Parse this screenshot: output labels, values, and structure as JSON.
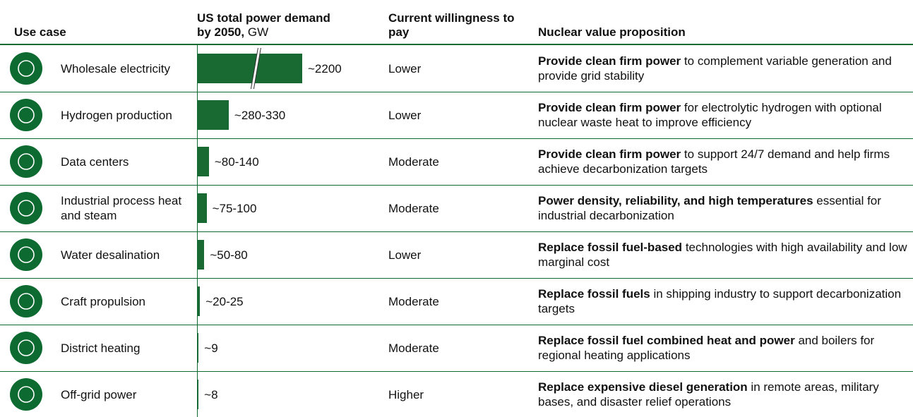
{
  "header": {
    "use_case": "Use case",
    "demand_line1": "US total power demand",
    "demand_bold": "by 2050,",
    "demand_unit": "GW",
    "willingness": "Current willingness to pay",
    "proposition": "Nuclear value proposition"
  },
  "table": {
    "rows": [
      {
        "use_case": "Wholesale electricity",
        "demand": {
          "value": 2200,
          "label": "~2200"
        },
        "willingness": "Lower",
        "proposition": {
          "bold": "Provide clean firm power",
          "rest": "to complement variable generation and provide grid stability"
        }
      },
      {
        "use_case": "Hydrogen production",
        "demand": {
          "value": 305,
          "label": "~280-330"
        },
        "willingness": "Lower",
        "proposition": {
          "bold": "Provide clean firm power",
          "rest": "for electrolytic hydrogen with optional nuclear waste heat to improve efficiency"
        }
      },
      {
        "use_case": "Data centers",
        "demand": {
          "value": 110,
          "label": "~80-140"
        },
        "willingness": "Moderate",
        "proposition": {
          "bold": "Provide clean firm power",
          "rest": "to support 24/7 demand and help firms achieve decarbonization targets"
        }
      },
      {
        "use_case": "Industrial process heat and steam",
        "demand": {
          "value": 87.5,
          "label": "~75-100"
        },
        "willingness": "Moderate",
        "proposition": {
          "bold": "Power density, reliability, and high temperatures",
          "rest": "essential for industrial decarbonization"
        }
      },
      {
        "use_case": "Water desalination",
        "demand": {
          "value": 65,
          "label": "~50-80"
        },
        "willingness": "Lower",
        "proposition": {
          "bold": "Replace fossil fuel-based",
          "rest": "technologies with high availability and low marginal cost"
        }
      },
      {
        "use_case": "Craft propulsion",
        "demand": {
          "value": 22.5,
          "label": "~20-25"
        },
        "willingness": "Moderate",
        "proposition": {
          "bold": "Replace fossil fuels",
          "rest": "in shipping industry to support decarbonization targets"
        }
      },
      {
        "use_case": "District heating",
        "demand": {
          "value": 9,
          "label": "~9"
        },
        "willingness": "Moderate",
        "proposition": {
          "bold": "Replace fossil fuel combined heat and power",
          "rest": "and boilers for regional heating applications"
        }
      },
      {
        "use_case": "Off-grid power",
        "demand": {
          "value": 8,
          "label": "~8"
        },
        "willingness": "Higher",
        "proposition": {
          "bold": "Replace expensive diesel generation",
          "rest": "in remote areas, military bases, and disaster relief operations"
        }
      }
    ]
  }
}
